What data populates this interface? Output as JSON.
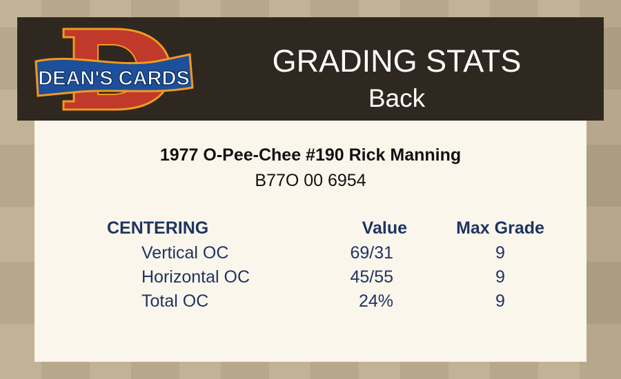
{
  "header": {
    "logo_text": "DEAN'S CARDS",
    "title": "GRADING STATS",
    "subtitle": "Back"
  },
  "card": {
    "name": "1977 O-Pee-Chee #190 Rick Manning",
    "cert": "B77O 00 6954"
  },
  "table": {
    "section": "CENTERING",
    "value_header": "Value",
    "max_header": "Max Grade",
    "rows": [
      {
        "label": "Vertical OC",
        "value": "69/31",
        "max": "9"
      },
      {
        "label": "Horizontal OC",
        "value": "45/55",
        "max": "9"
      },
      {
        "label": "Total OC",
        "value": "24%",
        "max": "9"
      }
    ]
  },
  "colors": {
    "header_bg": "#2e2820",
    "panel_bg": "#fbf6ec",
    "table_text": "#1e3461",
    "logo_red": "#c0392b",
    "logo_blue": "#1d4f9a",
    "logo_orange": "#f39a1e"
  }
}
